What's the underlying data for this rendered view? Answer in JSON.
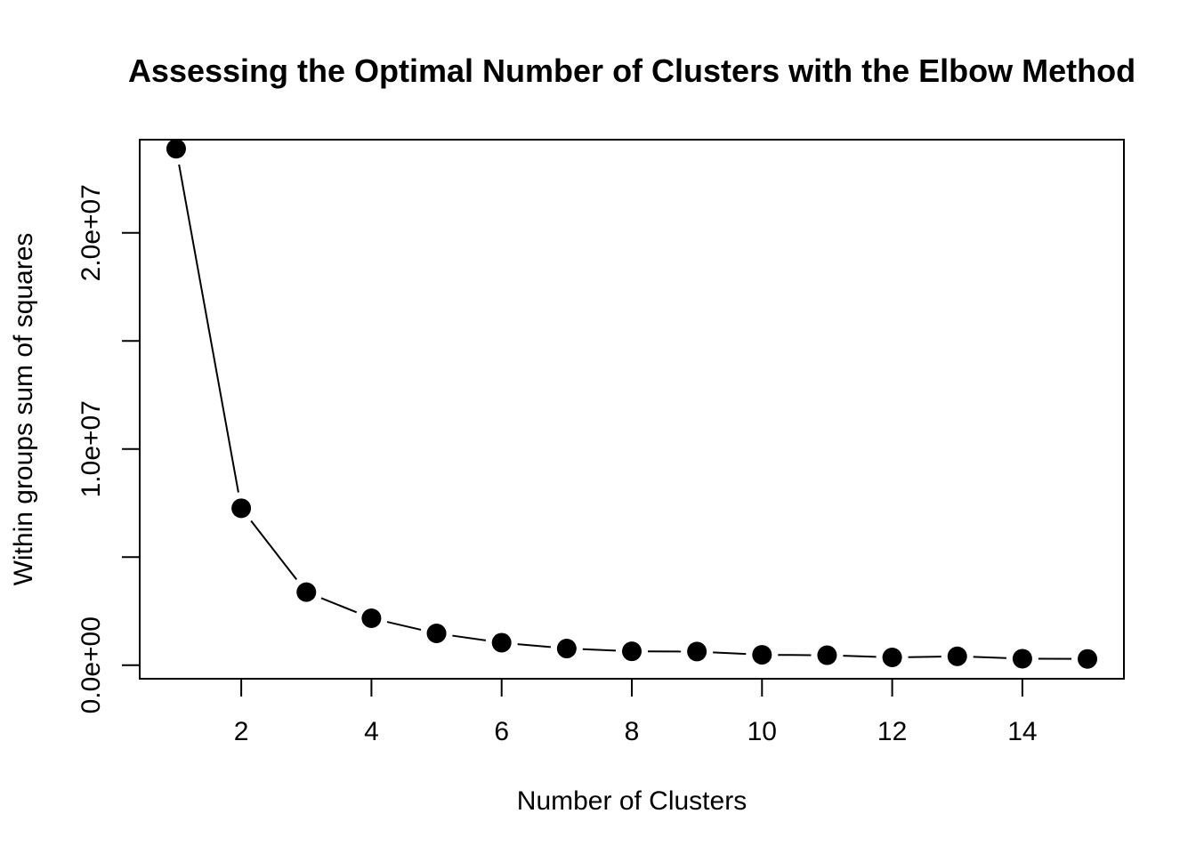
{
  "chart_data": {
    "type": "line",
    "title": "Assessing the Optimal Number of Clusters with the Elbow Method",
    "xlabel": "Number of Clusters",
    "ylabel": "Within groups sum of squares",
    "x": [
      1,
      2,
      3,
      4,
      5,
      6,
      7,
      8,
      9,
      10,
      11,
      12,
      13,
      14,
      15
    ],
    "series": [
      {
        "values": [
          23890000,
          7260000,
          3380000,
          2170000,
          1470000,
          1040000,
          770000,
          640000,
          630000,
          480000,
          460000,
          360000,
          410000,
          300000,
          290000
        ]
      }
    ],
    "xlim": [
      0.44,
      15.56
    ],
    "ylim": [
      -628000,
      24310000
    ],
    "x_ticks": [
      2,
      4,
      6,
      8,
      10,
      12,
      14
    ],
    "x_tick_labels": [
      "2",
      "4",
      "6",
      "8",
      "10",
      "12",
      "14"
    ],
    "y_ticks": [
      0,
      5000000,
      10000000,
      15000000,
      20000000
    ],
    "y_tick_labels": [
      "0.0e+00",
      "",
      "1.0e+07",
      "",
      "2.0e+07"
    ],
    "markers": "filled-circle",
    "line_color": "#000000",
    "marker_color": "#000000",
    "grid": false,
    "legend": "none"
  }
}
